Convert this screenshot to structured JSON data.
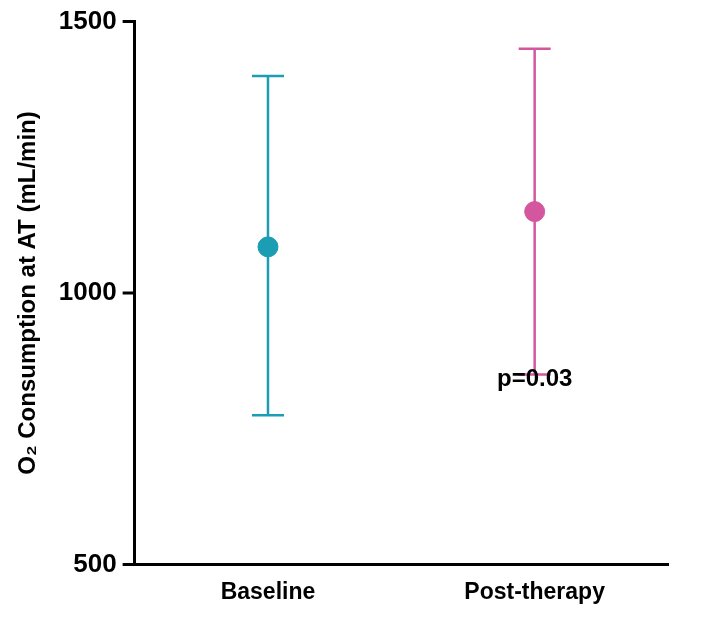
{
  "chart_data": {
    "type": "scatter",
    "y_label": "O₂ Consumption at AT (mL/min)",
    "categories": [
      "Baseline",
      "Post-therapy"
    ],
    "values": [
      1085,
      1150
    ],
    "error_lower": [
      775,
      850
    ],
    "error_upper": [
      1400,
      1450
    ],
    "colors": [
      "#1b9db3",
      "#d3569f"
    ],
    "ylim": [
      500,
      1500
    ],
    "yticks": [
      500,
      1000,
      1500
    ],
    "grid": false,
    "annotations": [
      "p=0.03"
    ]
  }
}
